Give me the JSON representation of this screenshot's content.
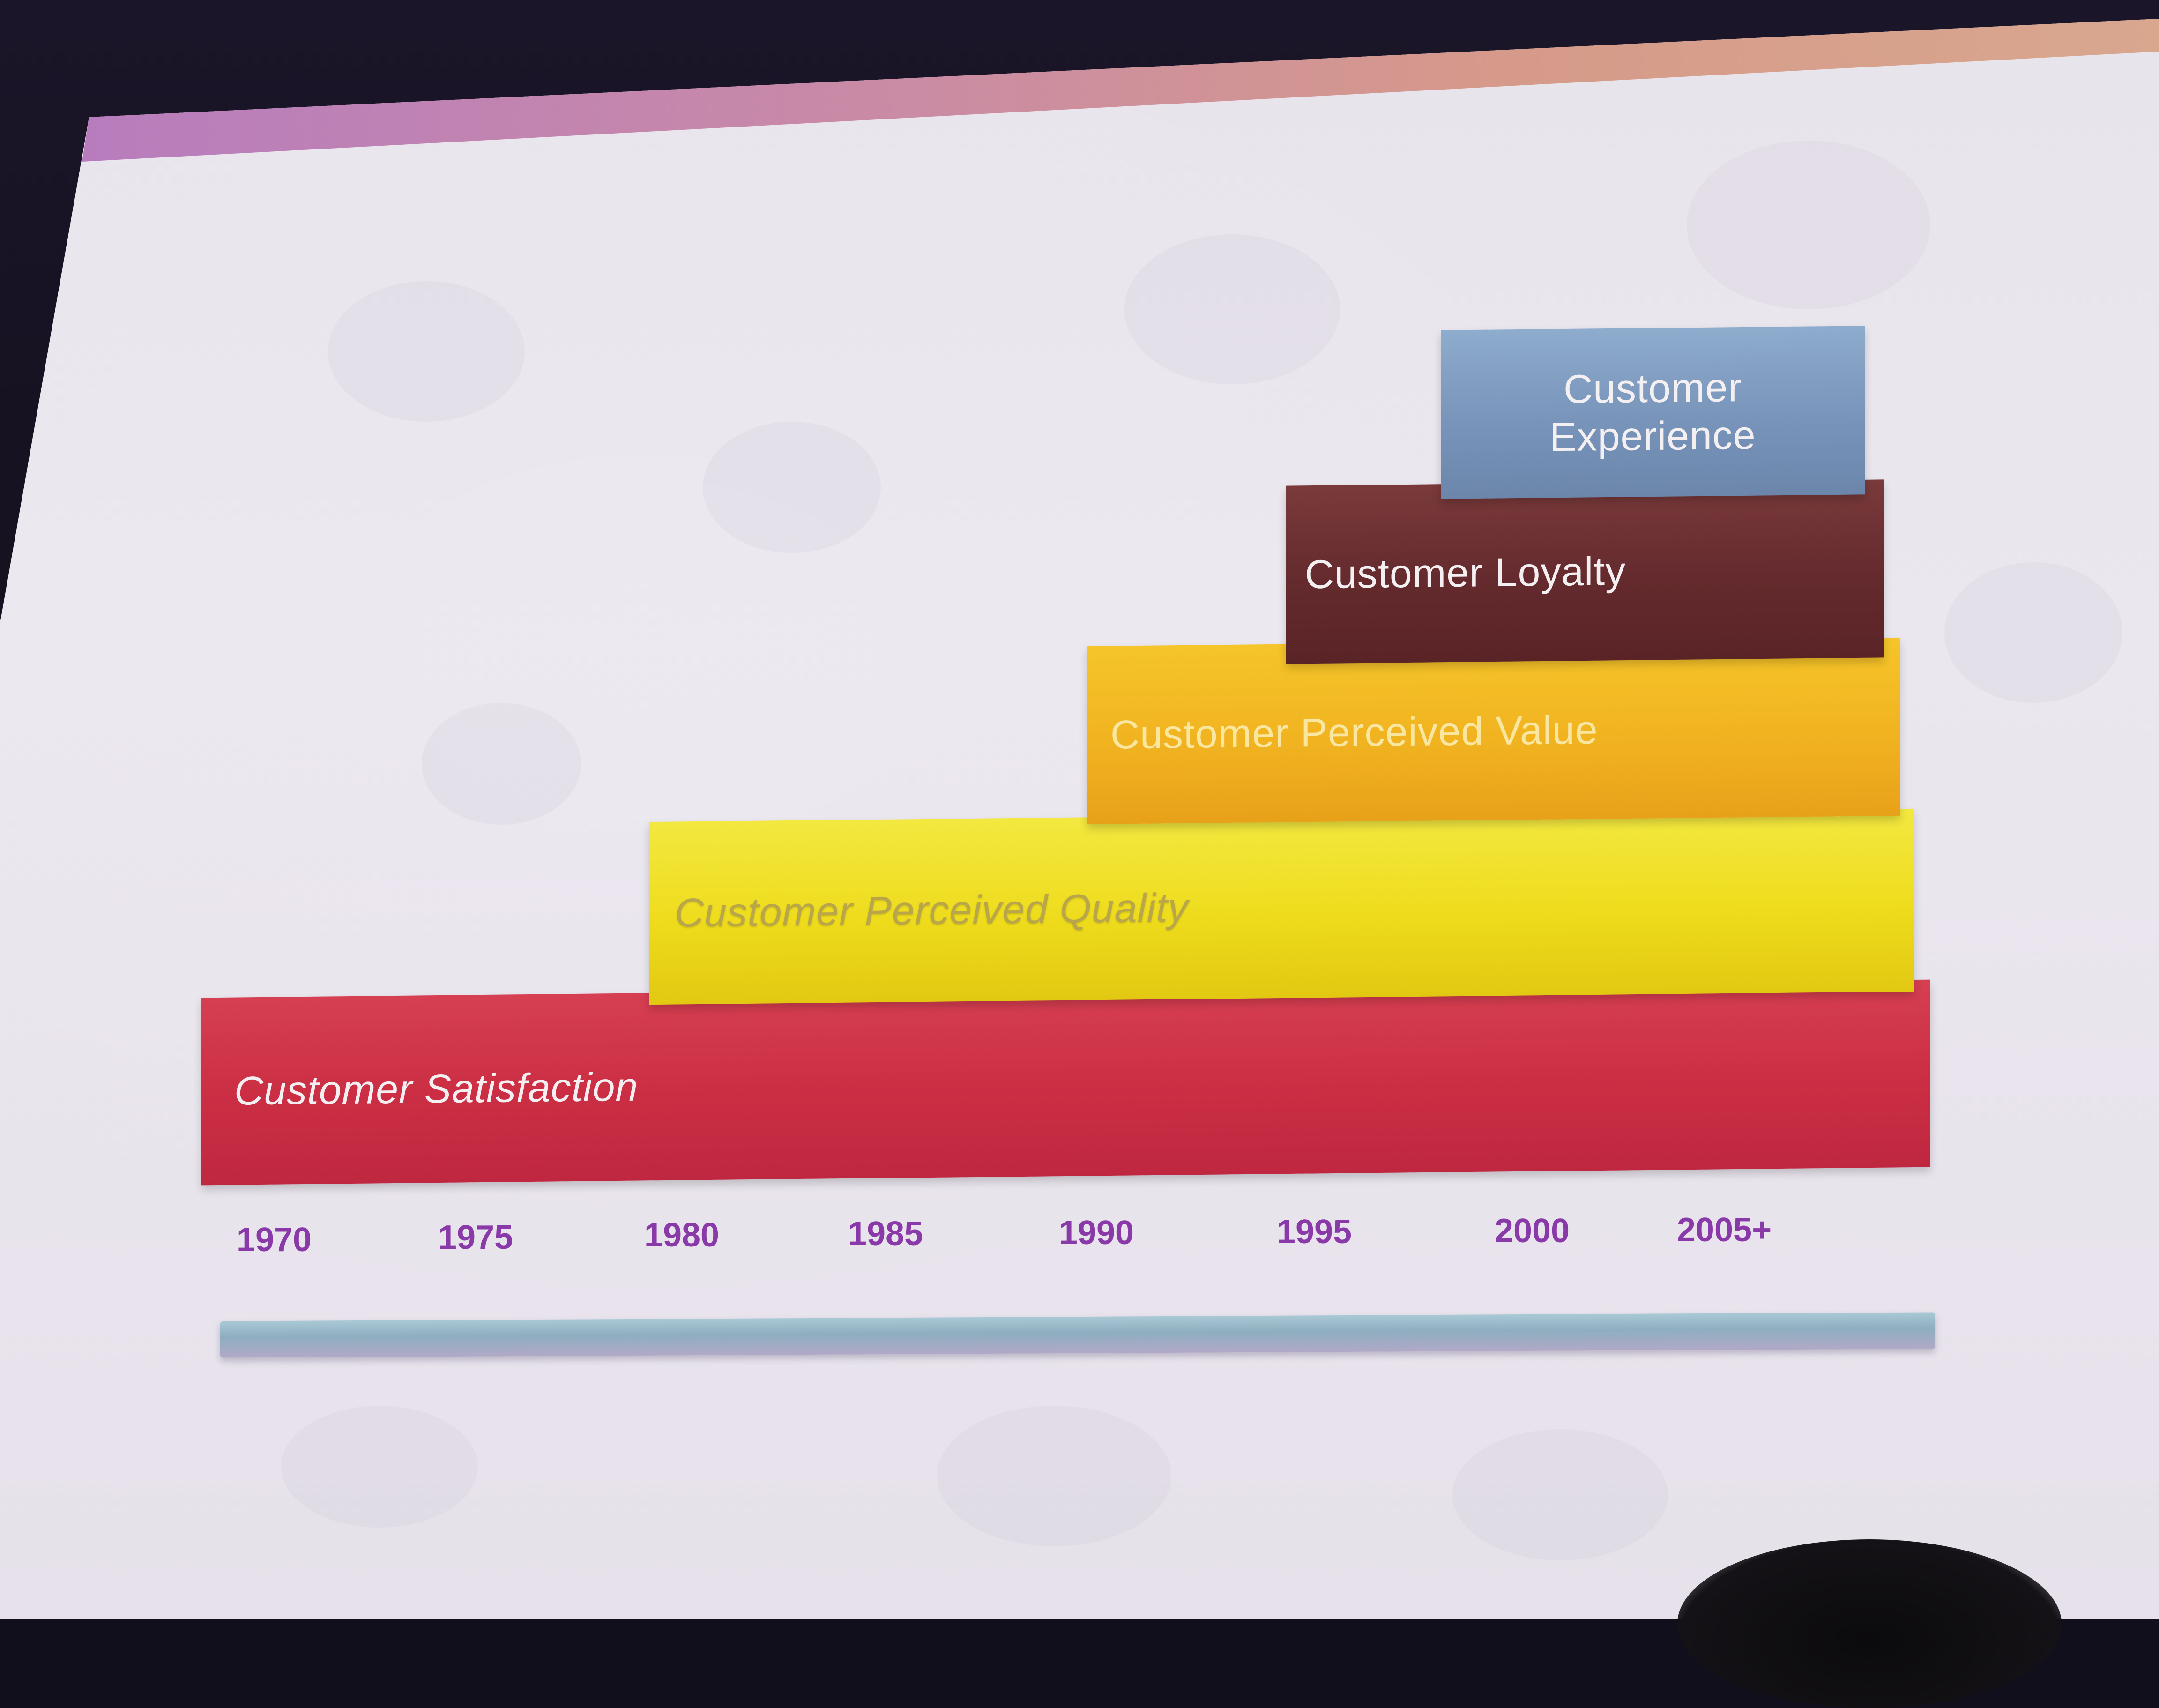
{
  "diagram": {
    "levels": [
      {
        "label": "Customer Satisfaction",
        "start": "1970"
      },
      {
        "label": "Customer Perceived Quality",
        "start": "1980"
      },
      {
        "label": "Customer Perceived Value",
        "start": "1990"
      },
      {
        "label": "Customer Loyalty",
        "start": "1995"
      },
      {
        "label": "Customer Experience",
        "start": "2000"
      }
    ],
    "years": [
      "1970",
      "1975",
      "1980",
      "1985",
      "1990",
      "1995",
      "2000",
      "2005+"
    ]
  },
  "colors": {
    "satisfaction": "#cc2f44",
    "quality": "#eedc1c",
    "value": "#f1b320",
    "loyalty": "#642a2d",
    "experience": "#7894ba",
    "year_text": "#8a3aa8"
  }
}
